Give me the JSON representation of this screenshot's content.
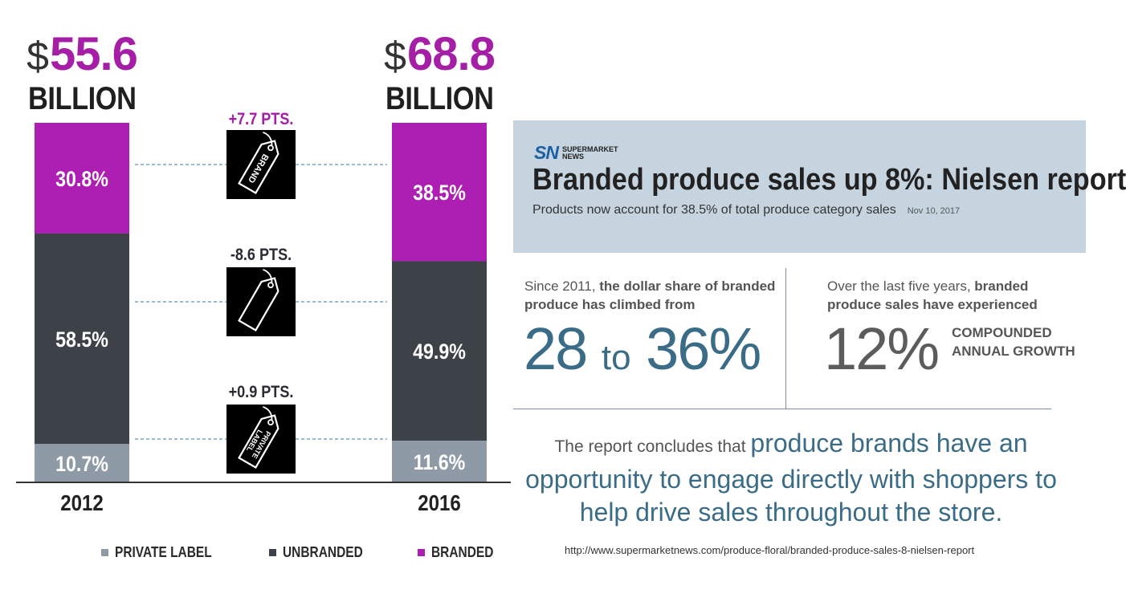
{
  "chart_data": {
    "type": "bar",
    "stacked": true,
    "categories": [
      "2012",
      "2016"
    ],
    "totals": [
      {
        "currency": "$",
        "amount": "55.6",
        "unit": "BILLION"
      },
      {
        "currency": "$",
        "amount": "68.8",
        "unit": "BILLION"
      }
    ],
    "series": [
      {
        "name": "PRIVATE LABEL",
        "color": "#8e9aa6",
        "values": [
          10.7,
          11.6
        ],
        "labels": [
          "10.7%",
          "11.6%"
        ]
      },
      {
        "name": "UNBRANDED",
        "color": "#3d4148",
        "values": [
          58.5,
          49.9
        ],
        "labels": [
          "58.5%",
          "49.9%"
        ]
      },
      {
        "name": "BRANDED",
        "color": "#ad1fb2",
        "values": [
          30.8,
          38.5
        ],
        "labels": [
          "30.8%",
          "38.5%"
        ]
      }
    ],
    "changes": [
      {
        "series": "BRANDED",
        "label": "+7.7 PTS.",
        "icon": "brand-tag-icon",
        "tag_text": "BRAND"
      },
      {
        "series": "UNBRANDED",
        "label": "-8.6 PTS.",
        "icon": "blank-tag-icon",
        "tag_text": ""
      },
      {
        "series": "PRIVATE LABEL",
        "label": "+0.9 PTS.",
        "icon": "private-label-tag-icon",
        "tag_text": "PRIVATE LABEL"
      }
    ],
    "ylim": [
      0,
      100
    ],
    "legend_position": "bottom"
  },
  "article": {
    "logo_mark": "SN",
    "publication": "SUPERMARKET NEWS",
    "headline": "Branded produce sales up 8%: Nielsen report",
    "subhead": "Products now account for 38.5% of total produce category sales",
    "date": "Nov 10, 2017"
  },
  "stats": {
    "left_intro": "Since 2011, ",
    "left_bold": "the dollar share of branded produce has climbed from",
    "left_from": "28",
    "left_to_word": "to",
    "left_to": "36%",
    "right_intro": "Over the last five years, ",
    "right_bold": "branded produce sales have experienced",
    "right_value": "12%",
    "right_caption_1": "COMPOUNDED",
    "right_caption_2": "ANNUAL GROWTH"
  },
  "conclusion": {
    "lead": "The report concludes that ",
    "emphasis": "produce brands have an opportunity to engage directly with shoppers to help drive sales throughout the store."
  },
  "source_url": "http://www.supermarketnews.com/produce-floral/branded-produce-sales-8-nielsen-report",
  "colors": {
    "banner": "#c5d4de",
    "accent_blue": "#3a6c88",
    "branded": "#ad1fb2",
    "unbranded": "#3d4148",
    "private_label": "#8e9aa6"
  }
}
